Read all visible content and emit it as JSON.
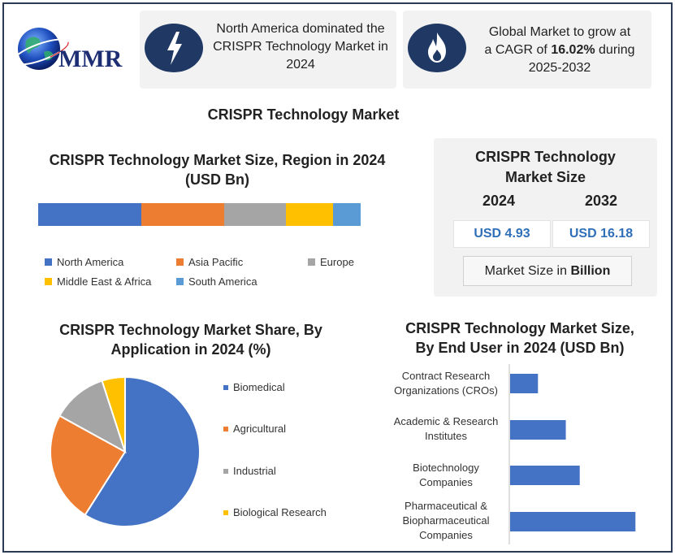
{
  "brand": {
    "logo_text": "MMR"
  },
  "info_cards": [
    {
      "icon": "lightning-icon",
      "text_lines": [
        "North America dominated the",
        "CRISPR Technology Market in",
        "2024"
      ]
    },
    {
      "icon": "fire-icon",
      "line1": "Global Market to grow at",
      "line2_prefix": "a CAGR of ",
      "line2_bold": "16.02%",
      "line2_suffix": " during",
      "line3": "2025-2032"
    }
  ],
  "main_title": "CRISPR Technology Market",
  "size_card": {
    "title_line1": "CRISPR Technology",
    "title_line2": "Market Size",
    "year_a": "2024",
    "year_b": "2032",
    "value_a": "USD 4.93",
    "value_b": "USD 16.18",
    "unit_prefix": "Market Size in ",
    "unit_bold": "Billion"
  },
  "colors": {
    "blue": "#4472c4",
    "orange": "#ed7d31",
    "gray": "#a5a5a5",
    "yellow": "#ffc000",
    "lightblue": "#5b9bd5",
    "navy": "#1f3864"
  },
  "chart_data": [
    {
      "type": "bar",
      "orientation": "horizontal-stacked",
      "title_line1": "CRISPR Technology Market Size, Region in 2024",
      "title_line2": "(USD Bn)",
      "series": [
        {
          "name": "North America",
          "value": 1.57,
          "color": "#4472c4"
        },
        {
          "name": "Asia Pacific",
          "value": 1.26,
          "color": "#ed7d31"
        },
        {
          "name": "Europe",
          "value": 0.94,
          "color": "#a5a5a5"
        },
        {
          "name": "Middle East & Africa",
          "value": 0.72,
          "color": "#ffc000"
        },
        {
          "name": "South America",
          "value": 0.42,
          "color": "#5b9bd5"
        }
      ],
      "total": 4.93,
      "legend_position": "bottom"
    },
    {
      "type": "pie",
      "title_line1": "CRISPR Technology Market Share, By",
      "title_line2": "Application in 2024 (%)",
      "slices": [
        {
          "name": "Biomedical",
          "value": 59,
          "color": "#4472c4"
        },
        {
          "name": "Agricultural",
          "value": 24,
          "color": "#ed7d31"
        },
        {
          "name": "Industrial",
          "value": 12,
          "color": "#a5a5a5"
        },
        {
          "name": "Biological Research",
          "value": 5,
          "color": "#ffc000"
        }
      ],
      "legend_position": "right"
    },
    {
      "type": "bar",
      "orientation": "horizontal",
      "title_line1": "CRISPR Technology Market Size,",
      "title_line2": "By End User in 2024 (USD Bn)",
      "categories": [
        [
          "Contract Research",
          "Organizations (CROs)"
        ],
        [
          "Academic & Research",
          "Institutes"
        ],
        [
          "Biotechnology",
          "Companies"
        ],
        [
          "Pharmaceutical &",
          "Biopharmaceutical",
          "Companies"
        ]
      ],
      "values": [
        0.6,
        1.2,
        1.5,
        2.7
      ],
      "xlim": [
        0,
        2.8
      ],
      "color": "#4472c4"
    }
  ]
}
